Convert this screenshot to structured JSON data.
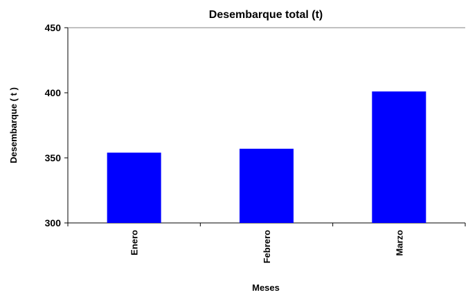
{
  "chart_data": {
    "type": "bar",
    "title": "Desembarque total (t)",
    "xlabel": "Meses",
    "ylabel": "Desembarque  ( t )",
    "categories": [
      "Enero",
      "Febrero",
      "Marzo"
    ],
    "values": [
      354,
      357,
      401
    ],
    "ylim": [
      300,
      450
    ],
    "yticks": [
      "300",
      "350",
      "400",
      "450"
    ],
    "grid": false,
    "legend": "none",
    "bar_color": "#0000FF"
  }
}
